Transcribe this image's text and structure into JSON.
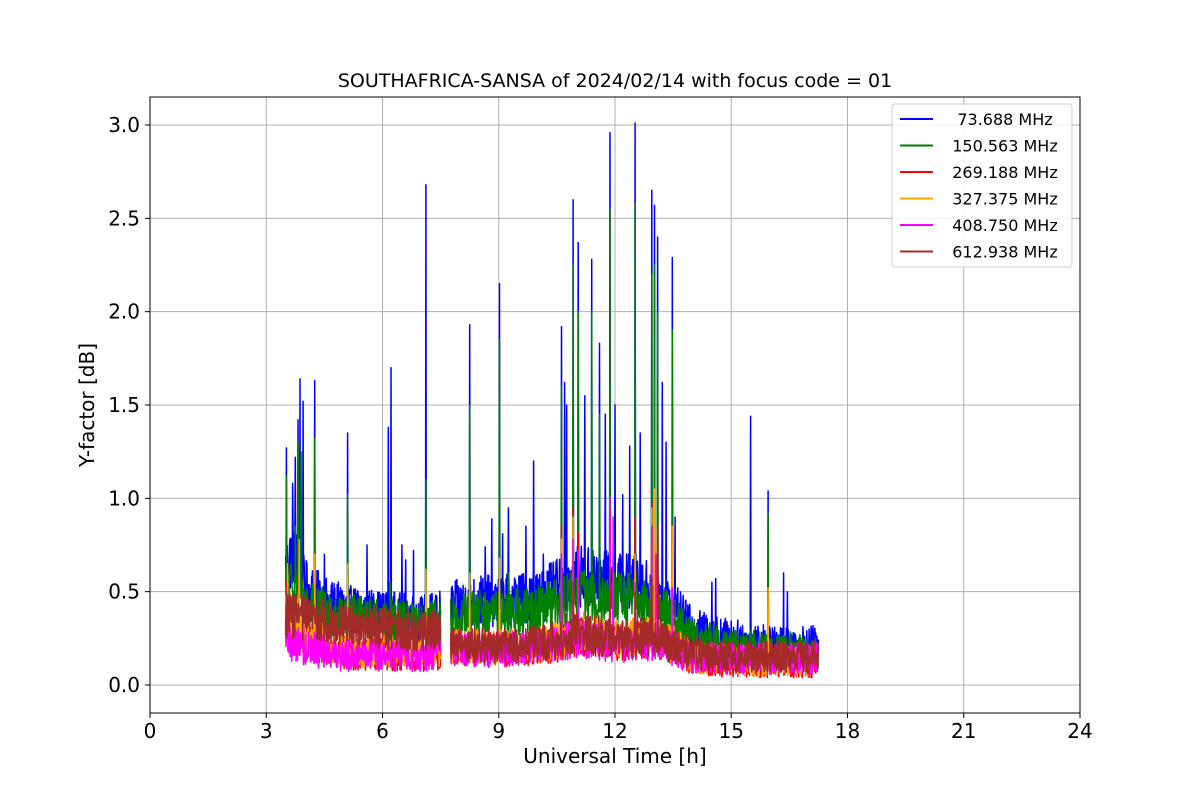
{
  "chart_data": {
    "type": "line",
    "title": "SOUTHAFRICA-SANSA of 2024/02/14 with focus code = 01",
    "xlabel": "Universal Time [h]",
    "ylabel": "Y-factor [dB]",
    "xlim": [
      0,
      24
    ],
    "ylim": [
      -0.15,
      3.15
    ],
    "x_ticks": [
      0,
      3,
      6,
      9,
      12,
      15,
      18,
      21,
      24
    ],
    "x_tick_labels": [
      "0",
      "3",
      "6",
      "9",
      "12",
      "15",
      "18",
      "21",
      "24"
    ],
    "y_ticks": [
      0.0,
      0.5,
      1.0,
      1.5,
      2.0,
      2.5,
      3.0
    ],
    "y_tick_labels": [
      "0.0",
      "0.5",
      "1.0",
      "1.5",
      "2.0",
      "2.5",
      "3.0"
    ],
    "grid": true,
    "legend_position": "top-right",
    "data_range_x": [
      3.5,
      17.25
    ],
    "gap_x": [
      7.5,
      7.75
    ],
    "series": [
      {
        "name": " 73.688 MHz",
        "color": "#0000ff",
        "base": [
          [
            3.5,
            0.62
          ],
          [
            3.7,
            0.72
          ],
          [
            4.0,
            0.52
          ],
          [
            4.6,
            0.43
          ],
          [
            5.2,
            0.4
          ],
          [
            6.0,
            0.38
          ],
          [
            7.0,
            0.36
          ],
          [
            7.5,
            0.38
          ],
          [
            7.75,
            0.42
          ],
          [
            8.5,
            0.45
          ],
          [
            9.0,
            0.45
          ],
          [
            10.0,
            0.47
          ],
          [
            10.5,
            0.52
          ],
          [
            11.0,
            0.58
          ],
          [
            11.5,
            0.58
          ],
          [
            12.0,
            0.55
          ],
          [
            12.5,
            0.55
          ],
          [
            13.0,
            0.5
          ],
          [
            13.5,
            0.42
          ],
          [
            14.0,
            0.3
          ],
          [
            15.0,
            0.25
          ],
          [
            16.0,
            0.22
          ],
          [
            17.25,
            0.22
          ]
        ],
        "spikes": [
          [
            3.52,
            1.27
          ],
          [
            3.68,
            1.08
          ],
          [
            3.75,
            1.22
          ],
          [
            3.82,
            1.42
          ],
          [
            3.87,
            1.64
          ],
          [
            3.95,
            1.52
          ],
          [
            4.25,
            1.63
          ],
          [
            4.5,
            0.7
          ],
          [
            5.1,
            1.35
          ],
          [
            5.6,
            0.75
          ],
          [
            6.15,
            1.38
          ],
          [
            6.22,
            1.7
          ],
          [
            6.5,
            0.75
          ],
          [
            6.6,
            0.67
          ],
          [
            6.8,
            0.72
          ],
          [
            7.12,
            2.68
          ],
          [
            8.25,
            1.93
          ],
          [
            8.65,
            0.74
          ],
          [
            8.82,
            0.89
          ],
          [
            9.02,
            2.15
          ],
          [
            9.1,
            0.81
          ],
          [
            9.25,
            0.95
          ],
          [
            9.7,
            0.85
          ],
          [
            9.9,
            1.2
          ],
          [
            10.15,
            0.7
          ],
          [
            10.62,
            1.92
          ],
          [
            10.7,
            1.62
          ],
          [
            10.75,
            1.5
          ],
          [
            10.92,
            2.6
          ],
          [
            11.05,
            2.37
          ],
          [
            11.22,
            1.55
          ],
          [
            11.4,
            2.28
          ],
          [
            11.6,
            1.83
          ],
          [
            11.75,
            1.45
          ],
          [
            11.87,
            2.96
          ],
          [
            12.0,
            1.5
          ],
          [
            12.2,
            1.02
          ],
          [
            12.38,
            1.28
          ],
          [
            12.52,
            3.01
          ],
          [
            12.65,
            1.35
          ],
          [
            12.95,
            2.65
          ],
          [
            13.02,
            2.57
          ],
          [
            13.1,
            2.4
          ],
          [
            13.22,
            1.62
          ],
          [
            13.32,
            1.3
          ],
          [
            13.48,
            2.29
          ],
          [
            13.55,
            0.9
          ],
          [
            14.5,
            0.55
          ],
          [
            14.6,
            0.57
          ],
          [
            15.5,
            1.44
          ],
          [
            15.95,
            1.04
          ],
          [
            16.35,
            0.6
          ],
          [
            16.45,
            0.5
          ]
        ]
      },
      {
        "name": "150.563 MHz",
        "color": "#008000",
        "base": [
          [
            3.5,
            0.48
          ],
          [
            3.7,
            0.55
          ],
          [
            4.0,
            0.43
          ],
          [
            4.6,
            0.38
          ],
          [
            5.2,
            0.36
          ],
          [
            6.0,
            0.34
          ],
          [
            7.0,
            0.33
          ],
          [
            7.5,
            0.34
          ],
          [
            7.75,
            0.35
          ],
          [
            8.5,
            0.38
          ],
          [
            9.0,
            0.38
          ],
          [
            10.0,
            0.4
          ],
          [
            10.5,
            0.43
          ],
          [
            11.0,
            0.48
          ],
          [
            11.5,
            0.48
          ],
          [
            12.0,
            0.46
          ],
          [
            12.5,
            0.46
          ],
          [
            13.0,
            0.44
          ],
          [
            13.5,
            0.35
          ],
          [
            14.0,
            0.25
          ],
          [
            15.0,
            0.21
          ],
          [
            16.0,
            0.19
          ],
          [
            17.25,
            0.19
          ]
        ],
        "spikes": [
          [
            3.52,
            1.12
          ],
          [
            3.75,
            0.85
          ],
          [
            3.82,
            1.3
          ],
          [
            3.9,
            1.25
          ],
          [
            4.25,
            1.32
          ],
          [
            5.1,
            1.02
          ],
          [
            6.2,
            0.55
          ],
          [
            7.12,
            1.1
          ],
          [
            8.25,
            1.5
          ],
          [
            9.02,
            1.85
          ],
          [
            9.25,
            0.6
          ],
          [
            10.62,
            1.6
          ],
          [
            10.92,
            2.25
          ],
          [
            11.05,
            2.0
          ],
          [
            11.4,
            2.0
          ],
          [
            11.6,
            1.45
          ],
          [
            11.87,
            2.55
          ],
          [
            12.52,
            2.58
          ],
          [
            12.95,
            2.2
          ],
          [
            13.02,
            2.25
          ],
          [
            13.1,
            2.0
          ],
          [
            13.48,
            1.9
          ],
          [
            15.95,
            0.92
          ]
        ]
      },
      {
        "name": "269.188 MHz",
        "color": "#ff0000",
        "base": [
          [
            3.5,
            0.3
          ],
          [
            3.7,
            0.28
          ],
          [
            4.0,
            0.24
          ],
          [
            4.6,
            0.2
          ],
          [
            5.2,
            0.17
          ],
          [
            6.0,
            0.16
          ],
          [
            7.0,
            0.16
          ],
          [
            7.5,
            0.17
          ],
          [
            7.75,
            0.2
          ],
          [
            8.5,
            0.19
          ],
          [
            9.0,
            0.19
          ],
          [
            10.0,
            0.2
          ],
          [
            10.5,
            0.22
          ],
          [
            11.0,
            0.26
          ],
          [
            11.5,
            0.26
          ],
          [
            12.0,
            0.22
          ],
          [
            12.5,
            0.24
          ],
          [
            13.0,
            0.25
          ],
          [
            13.5,
            0.2
          ],
          [
            14.0,
            0.14
          ],
          [
            15.0,
            0.12
          ],
          [
            16.0,
            0.12
          ],
          [
            17.25,
            0.12
          ]
        ],
        "spikes": [
          [
            3.52,
            0.55
          ],
          [
            3.85,
            0.6
          ],
          [
            5.1,
            0.5
          ],
          [
            10.62,
            0.85
          ],
          [
            10.92,
            0.95
          ],
          [
            11.05,
            0.82
          ],
          [
            11.87,
            0.95
          ],
          [
            12.52,
            0.9
          ],
          [
            12.95,
            0.98
          ],
          [
            13.1,
            0.85
          ],
          [
            13.48,
            0.7
          ],
          [
            15.95,
            0.48
          ]
        ]
      },
      {
        "name": "327.375 MHz",
        "color": "#ffa500",
        "base": [
          [
            3.5,
            0.33
          ],
          [
            3.7,
            0.31
          ],
          [
            4.0,
            0.27
          ],
          [
            4.6,
            0.22
          ],
          [
            5.2,
            0.19
          ],
          [
            6.0,
            0.18
          ],
          [
            7.0,
            0.18
          ],
          [
            7.5,
            0.19
          ],
          [
            7.75,
            0.21
          ],
          [
            8.5,
            0.2
          ],
          [
            9.0,
            0.2
          ],
          [
            10.0,
            0.21
          ],
          [
            10.5,
            0.24
          ],
          [
            11.0,
            0.28
          ],
          [
            11.5,
            0.28
          ],
          [
            12.0,
            0.24
          ],
          [
            12.5,
            0.26
          ],
          [
            13.0,
            0.27
          ],
          [
            13.5,
            0.22
          ],
          [
            14.0,
            0.15
          ],
          [
            15.0,
            0.13
          ],
          [
            16.0,
            0.13
          ],
          [
            17.25,
            0.13
          ]
        ],
        "spikes": [
          [
            3.55,
            0.65
          ],
          [
            3.85,
            0.78
          ],
          [
            4.25,
            0.7
          ],
          [
            5.1,
            0.65
          ],
          [
            7.12,
            0.62
          ],
          [
            8.25,
            0.6
          ],
          [
            9.02,
            0.68
          ],
          [
            10.62,
            0.78
          ],
          [
            10.92,
            0.9
          ],
          [
            11.87,
            0.75
          ],
          [
            12.52,
            0.7
          ],
          [
            12.95,
            0.95
          ],
          [
            13.02,
            1.05
          ],
          [
            13.48,
            0.85
          ],
          [
            15.95,
            0.52
          ]
        ]
      },
      {
        "name": "408.750 MHz",
        "color": "#ff00ff",
        "base": [
          [
            3.5,
            0.24
          ],
          [
            3.7,
            0.22
          ],
          [
            4.0,
            0.2
          ],
          [
            4.6,
            0.17
          ],
          [
            5.2,
            0.16
          ],
          [
            6.0,
            0.16
          ],
          [
            7.0,
            0.16
          ],
          [
            7.5,
            0.18
          ],
          [
            7.75,
            0.2
          ],
          [
            8.5,
            0.19
          ],
          [
            9.0,
            0.19
          ],
          [
            10.0,
            0.2
          ],
          [
            10.5,
            0.22
          ],
          [
            11.0,
            0.25
          ],
          [
            11.5,
            0.24
          ],
          [
            12.0,
            0.21
          ],
          [
            12.5,
            0.23
          ],
          [
            13.0,
            0.23
          ],
          [
            13.5,
            0.19
          ],
          [
            14.0,
            0.15
          ],
          [
            15.0,
            0.14
          ],
          [
            16.0,
            0.14
          ],
          [
            17.25,
            0.14
          ]
        ],
        "spikes": [
          [
            10.62,
            0.7
          ],
          [
            10.92,
            0.78
          ],
          [
            11.05,
            0.72
          ],
          [
            11.87,
            1.0
          ],
          [
            11.95,
            0.9
          ],
          [
            12.52,
            0.55
          ],
          [
            12.95,
            0.85
          ],
          [
            13.05,
            0.7
          ],
          [
            13.48,
            0.52
          ]
        ]
      },
      {
        "name": "612.938 MHz",
        "color": "#a52a2a",
        "base": [
          [
            3.5,
            0.38
          ],
          [
            3.7,
            0.37
          ],
          [
            4.0,
            0.36
          ],
          [
            4.6,
            0.34
          ],
          [
            5.2,
            0.33
          ],
          [
            6.0,
            0.31
          ],
          [
            7.0,
            0.28
          ],
          [
            7.5,
            0.3
          ],
          [
            7.75,
            0.22
          ],
          [
            8.5,
            0.21
          ],
          [
            9.0,
            0.21
          ],
          [
            10.0,
            0.22
          ],
          [
            10.5,
            0.24
          ],
          [
            11.0,
            0.27
          ],
          [
            11.5,
            0.27
          ],
          [
            12.0,
            0.24
          ],
          [
            12.5,
            0.25
          ],
          [
            13.0,
            0.26
          ],
          [
            13.5,
            0.21
          ],
          [
            14.0,
            0.17
          ],
          [
            15.0,
            0.15
          ],
          [
            16.0,
            0.15
          ],
          [
            17.25,
            0.15
          ]
        ],
        "spikes": [
          [
            3.52,
            0.5
          ],
          [
            10.92,
            0.55
          ],
          [
            11.87,
            0.62
          ],
          [
            12.52,
            0.5
          ],
          [
            12.95,
            0.58
          ]
        ]
      }
    ]
  }
}
